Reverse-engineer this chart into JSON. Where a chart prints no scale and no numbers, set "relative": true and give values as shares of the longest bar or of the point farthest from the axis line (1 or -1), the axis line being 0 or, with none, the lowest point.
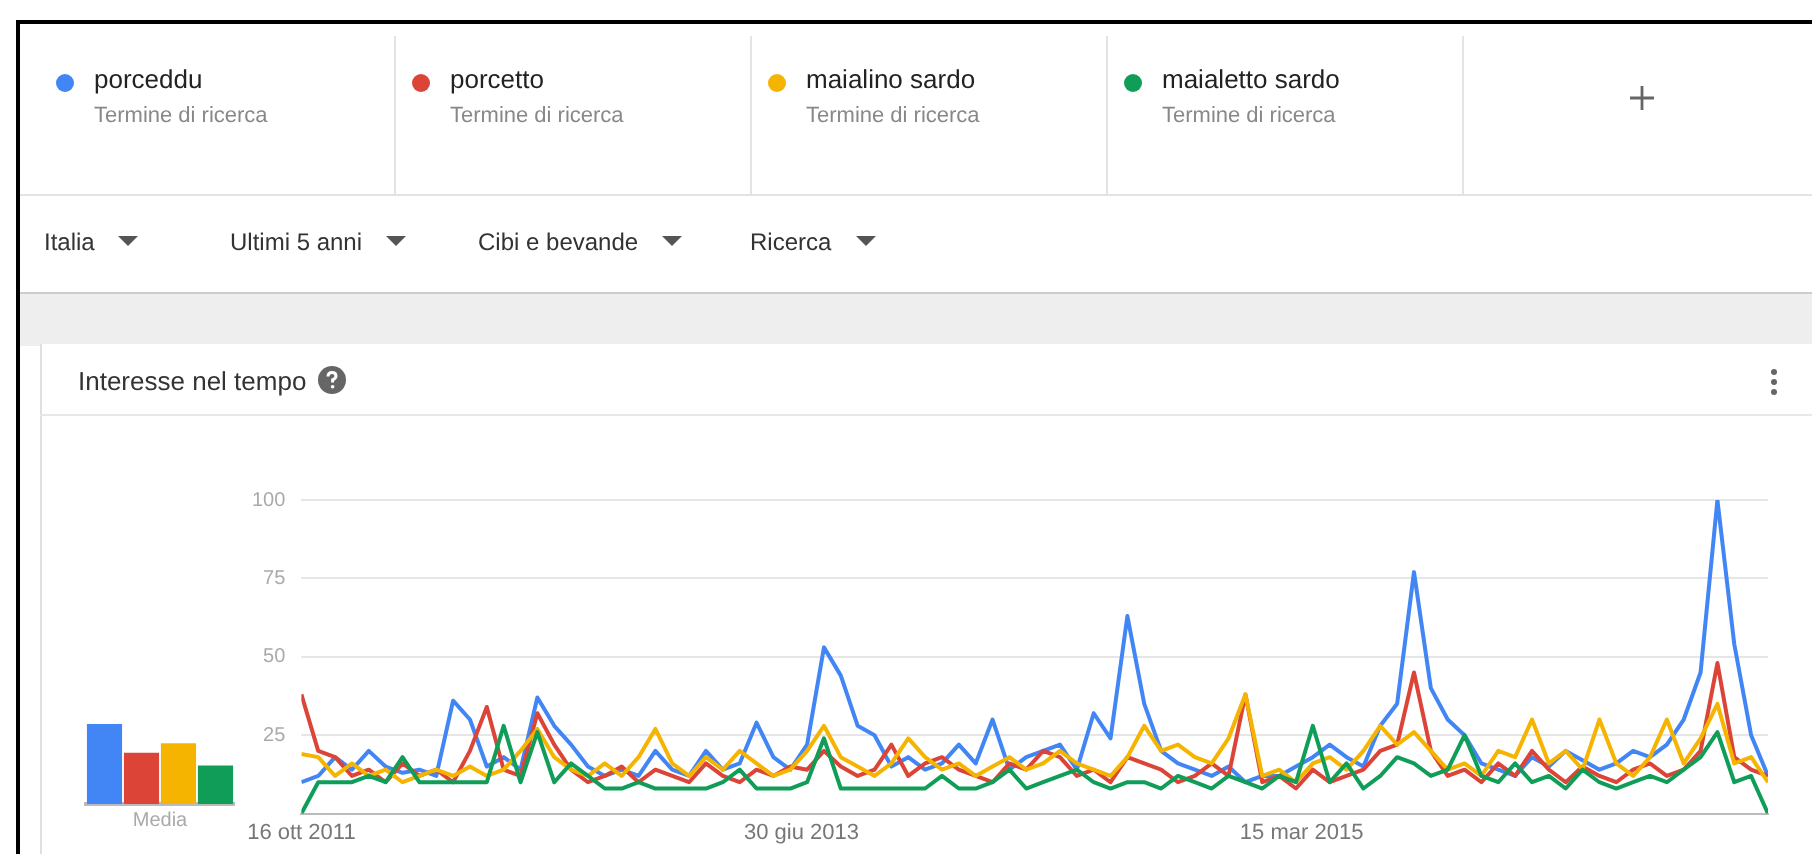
{
  "chart_data": [
    {
      "type": "line",
      "title": "Interesse nel tempo",
      "legend": "top",
      "grid": "y",
      "annotations": [
        "Termine di ricerca",
        "Termine di ricerca",
        "Termine di ricerca",
        "Termine di ricerca"
      ],
      "x": [
        "2011-10-16",
        "2011-11-06",
        "2011-11-27",
        "2011-12-18",
        "2012-01-08",
        "2012-01-29",
        "2012-02-19",
        "2012-03-11",
        "2012-04-01",
        "2012-04-22",
        "2012-05-13",
        "2012-06-03",
        "2012-06-24",
        "2012-07-15",
        "2012-08-05",
        "2012-08-26",
        "2012-09-16",
        "2012-10-07",
        "2012-10-28",
        "2012-11-18",
        "2012-12-09",
        "2012-12-30",
        "2013-01-20",
        "2013-02-10",
        "2013-03-03",
        "2013-03-24",
        "2013-04-14",
        "2013-05-05",
        "2013-05-26",
        "2013-06-16",
        "2013-07-07",
        "2013-07-28",
        "2013-08-18",
        "2013-09-08",
        "2013-09-29",
        "2013-10-20",
        "2013-11-10",
        "2013-12-01",
        "2013-12-22",
        "2014-01-12",
        "2014-02-02",
        "2014-02-23",
        "2014-03-16",
        "2014-04-06",
        "2014-04-27",
        "2014-05-18",
        "2014-06-08",
        "2014-06-29",
        "2014-07-20",
        "2014-08-10",
        "2014-08-31",
        "2014-09-21",
        "2014-10-12",
        "2014-11-02",
        "2014-11-23",
        "2014-12-14",
        "2015-01-04",
        "2015-01-25",
        "2015-02-15",
        "2015-03-08",
        "2015-03-29",
        "2015-04-19",
        "2015-05-10",
        "2015-05-31",
        "2015-06-21",
        "2015-07-12",
        "2015-08-02",
        "2015-08-23",
        "2015-09-13",
        "2015-10-04",
        "2015-10-25",
        "2015-11-15",
        "2015-12-06",
        "2015-12-27",
        "2016-01-17",
        "2016-02-07",
        "2016-02-28",
        "2016-03-20",
        "2016-04-10",
        "2016-05-01",
        "2016-05-22",
        "2016-06-12",
        "2016-07-03",
        "2016-07-24",
        "2016-08-14",
        "2016-09-04",
        "2016-09-25",
        "2016-10-16"
      ],
      "xlim": [
        "2011-10-16",
        "2016-10-16"
      ],
      "xticks": [
        {
          "value": "2011-10-16",
          "label": "16 ott 2011"
        },
        {
          "value": "2013-06-30",
          "label": "30 giu 2013"
        },
        {
          "value": "2015-03-15",
          "label": "15 mar 2015"
        }
      ],
      "ylim": [
        0,
        100
      ],
      "yticks": [
        {
          "value": 0,
          "label": null
        },
        25,
        50,
        75,
        100
      ],
      "series": [
        {
          "name": "porceddu",
          "color": "#4285f4",
          "values": [
            10,
            12,
            18,
            14,
            20,
            15,
            13,
            14,
            12,
            36,
            30,
            15,
            18,
            14,
            37,
            28,
            22,
            15,
            12,
            14,
            12,
            20,
            14,
            12,
            20,
            14,
            16,
            29,
            18,
            14,
            22,
            53,
            44,
            28,
            25,
            15,
            18,
            14,
            16,
            22,
            16,
            30,
            14,
            18,
            20,
            22,
            14,
            32,
            24,
            63,
            35,
            20,
            16,
            14,
            12,
            15,
            10,
            12,
            12,
            15,
            18,
            22,
            18,
            15,
            28,
            35,
            77,
            40,
            30,
            25,
            16,
            14,
            12,
            18,
            15,
            20,
            17,
            14,
            16,
            20,
            18,
            22,
            30,
            45,
            100,
            54,
            25,
            12
          ]
        },
        {
          "name": "porcetto",
          "color": "#db4437",
          "values": [
            38,
            20,
            18,
            12,
            14,
            10,
            16,
            12,
            14,
            10,
            20,
            34,
            14,
            12,
            32,
            22,
            14,
            10,
            12,
            15,
            10,
            14,
            12,
            10,
            16,
            12,
            10,
            14,
            12,
            15,
            14,
            20,
            15,
            12,
            14,
            22,
            12,
            16,
            18,
            14,
            12,
            10,
            16,
            14,
            20,
            18,
            12,
            14,
            10,
            18,
            16,
            14,
            10,
            12,
            16,
            12,
            38,
            10,
            12,
            8,
            14,
            10,
            12,
            14,
            20,
            22,
            45,
            20,
            12,
            14,
            10,
            16,
            12,
            20,
            14,
            10,
            15,
            12,
            10,
            14,
            16,
            12,
            14,
            20,
            48,
            18,
            14,
            12
          ]
        },
        {
          "name": "maialino sardo",
          "color": "#f4b400",
          "values": [
            19,
            18,
            12,
            16,
            12,
            14,
            10,
            12,
            14,
            12,
            15,
            12,
            14,
            20,
            27,
            18,
            14,
            12,
            16,
            12,
            18,
            27,
            16,
            12,
            18,
            14,
            20,
            16,
            12,
            14,
            20,
            28,
            18,
            15,
            12,
            16,
            24,
            18,
            14,
            16,
            12,
            15,
            18,
            14,
            16,
            20,
            16,
            14,
            12,
            18,
            28,
            20,
            22,
            18,
            16,
            24,
            38,
            12,
            14,
            10,
            16,
            18,
            14,
            20,
            28,
            22,
            26,
            20,
            14,
            16,
            12,
            20,
            18,
            30,
            16,
            20,
            14,
            30,
            16,
            12,
            18,
            30,
            16,
            24,
            35,
            16,
            18,
            10
          ]
        },
        {
          "name": "maialetto sardo",
          "color": "#0f9d58",
          "values": [
            0,
            10,
            10,
            10,
            12,
            10,
            18,
            10,
            10,
            10,
            10,
            10,
            28,
            10,
            26,
            10,
            16,
            12,
            8,
            8,
            10,
            8,
            8,
            8,
            8,
            10,
            14,
            8,
            8,
            8,
            10,
            24,
            8,
            8,
            8,
            8,
            8,
            8,
            12,
            8,
            8,
            10,
            14,
            8,
            10,
            12,
            14,
            10,
            8,
            10,
            10,
            8,
            12,
            10,
            8,
            12,
            10,
            8,
            12,
            10,
            28,
            10,
            16,
            8,
            12,
            18,
            16,
            12,
            14,
            25,
            12,
            10,
            16,
            10,
            12,
            8,
            14,
            10,
            8,
            10,
            12,
            10,
            14,
            18,
            26,
            10,
            12,
            0
          ]
        }
      ]
    },
    {
      "type": "other",
      "annotations": [
        "Italia",
        "Ultimi 5 anni",
        "Cibi e bevande",
        "Ricerca"
      ]
    },
    {
      "type": "bar",
      "relative": true,
      "xlabel": "Media",
      "categories": [
        null,
        null,
        null,
        null
      ],
      "values": [
        1,
        0.64,
        0.76,
        0.48
      ],
      "colors": [
        "#4285f4",
        "#db4437",
        "#f4b400",
        "#0f9d58"
      ]
    }
  ]
}
